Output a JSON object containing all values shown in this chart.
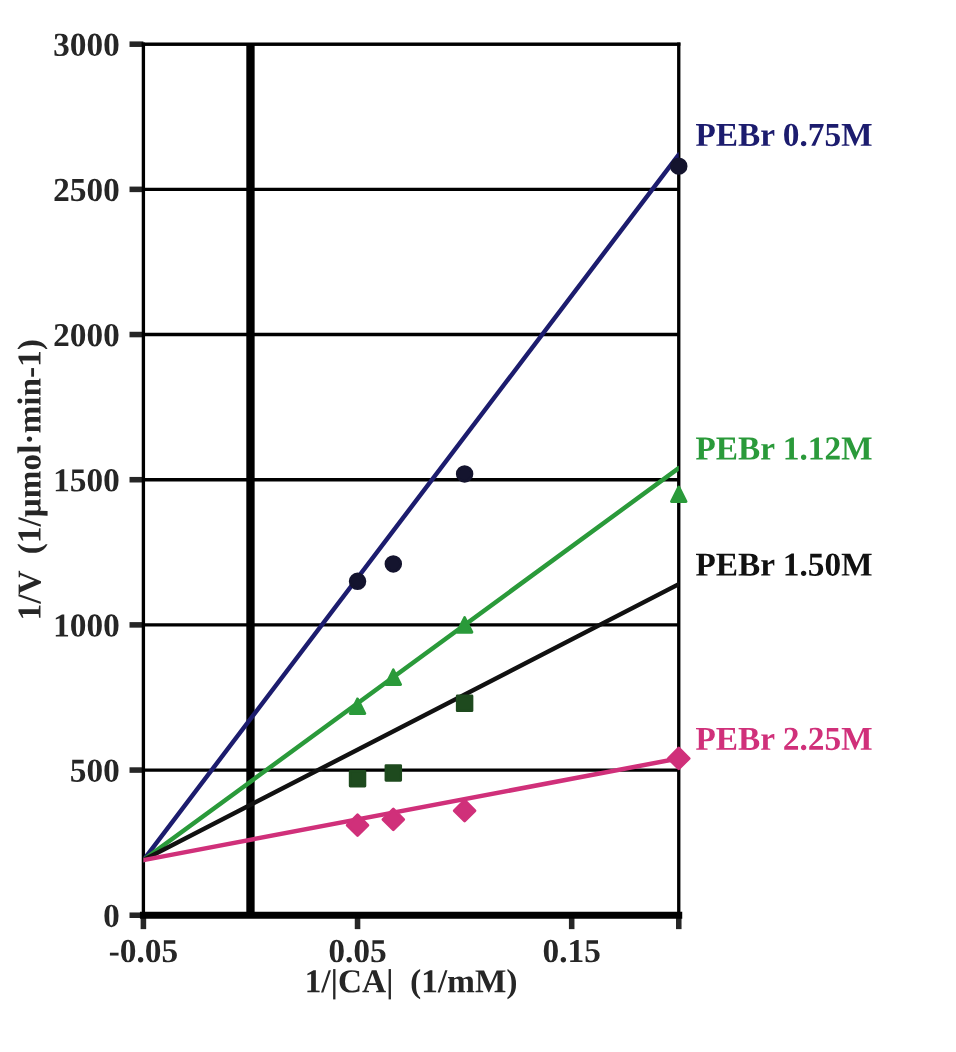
{
  "chart_data": {
    "type": "scatter",
    "xlabel": "1/|CA|  (1/mM)",
    "ylabel": "1/V  (1/μmol·min-1)",
    "xlim": [
      -0.05,
      0.2
    ],
    "ylim": [
      0,
      3000
    ],
    "xticks": [
      -0.05,
      0.05,
      0.15,
      {
        "value": 0.2,
        "label": null
      }
    ],
    "yticks": [
      0,
      500,
      1000,
      1500,
      2000,
      2500,
      3000
    ],
    "grid": "y",
    "legend": false,
    "ref_lines": [
      {
        "axis": "x",
        "value": 0,
        "color": "#000000"
      }
    ],
    "series": [
      {
        "type": "line",
        "name": "PEBr 0.75M",
        "color": "#1c1c6e",
        "x": [
          -0.05,
          0.2
        ],
        "values": [
          190,
          2620
        ],
        "marker": "none",
        "line_style": "solid"
      },
      {
        "type": "line",
        "name": "PEBr 1.12M",
        "color": "#2a9a3a",
        "x": [
          -0.05,
          0.2
        ],
        "values": [
          190,
          1540
        ],
        "marker": "none",
        "line_style": "solid"
      },
      {
        "type": "line",
        "name": "PEBr 1.50M",
        "color": "#111111",
        "x": [
          -0.05,
          0.2
        ],
        "values": [
          190,
          1140
        ],
        "marker": "none",
        "line_style": "solid"
      },
      {
        "type": "line",
        "name": "PEBr 2.25M",
        "color": "#d0307a",
        "x": [
          -0.05,
          0.2
        ],
        "values": [
          190,
          540
        ],
        "marker": "none",
        "line_style": "solid"
      },
      {
        "color": "#14142e",
        "x": [
          0.05,
          0.0667,
          0.1,
          0.2
        ],
        "values": [
          1150,
          1210,
          1520,
          2580
        ],
        "marker": "circle"
      },
      {
        "color": "#2a9a3a",
        "x": [
          0.05,
          0.0667,
          0.1,
          0.2
        ],
        "values": [
          720,
          820,
          1000,
          1450
        ],
        "marker": "triangle"
      },
      {
        "color": "#1e4a1e",
        "x": [
          0.05,
          0.0667,
          0.1
        ],
        "values": [
          470,
          490,
          730
        ],
        "marker": "square"
      },
      {
        "color": "#d0307a",
        "x": [
          0.05,
          0.0667,
          0.1,
          0.2
        ],
        "values": [
          310,
          330,
          360,
          540
        ],
        "marker": "diamond"
      }
    ]
  }
}
